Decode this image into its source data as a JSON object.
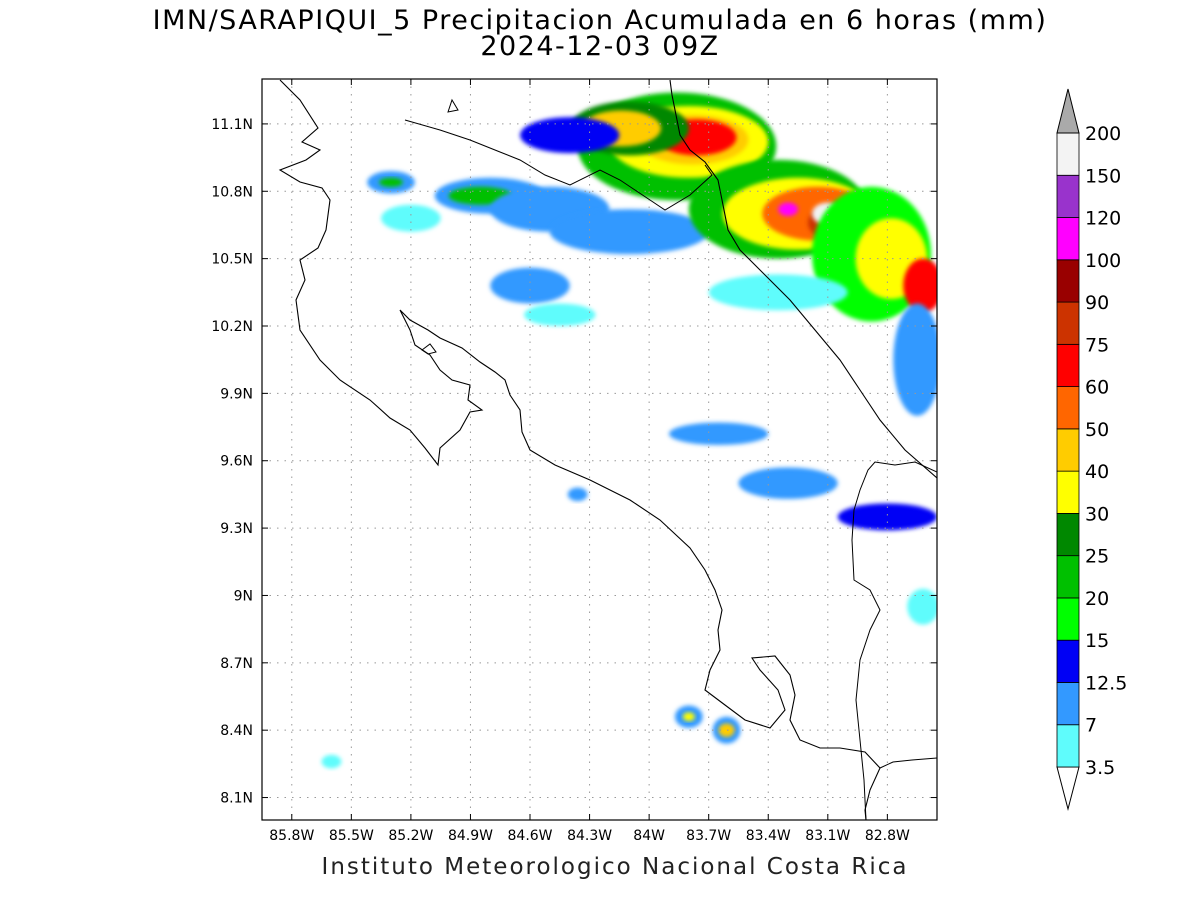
{
  "title": {
    "line1": "IMN/SARAPIQUI_5 Precipitacion Acumulada en 6 horas (mm)",
    "line2": "2024-12-03 09Z"
  },
  "footer": "Instituto Meteorologico Nacional Costa Rica",
  "map": {
    "lon_range": [
      -85.95,
      -82.55
    ],
    "lat_range": [
      8.0,
      11.3
    ],
    "x_ticks": [
      {
        "value": -85.8,
        "label": "85.8W"
      },
      {
        "value": -85.5,
        "label": "85.5W"
      },
      {
        "value": -85.2,
        "label": "85.2W"
      },
      {
        "value": -84.9,
        "label": "84.9W"
      },
      {
        "value": -84.6,
        "label": "84.6W"
      },
      {
        "value": -84.3,
        "label": "84.3W"
      },
      {
        "value": -84.0,
        "label": "84W"
      },
      {
        "value": -83.7,
        "label": "83.7W"
      },
      {
        "value": -83.4,
        "label": "83.4W"
      },
      {
        "value": -83.1,
        "label": "83.1W"
      },
      {
        "value": -82.8,
        "label": "82.8W"
      }
    ],
    "y_ticks": [
      {
        "value": 11.1,
        "label": "11.1N"
      },
      {
        "value": 10.8,
        "label": "10.8N"
      },
      {
        "value": 10.5,
        "label": "10.5N"
      },
      {
        "value": 10.2,
        "label": "10.2N"
      },
      {
        "value": 9.9,
        "label": "9.9N"
      },
      {
        "value": 9.6,
        "label": "9.6N"
      },
      {
        "value": 9.3,
        "label": "9.3N"
      },
      {
        "value": 9.0,
        "label": "9N"
      },
      {
        "value": 8.7,
        "label": "8.7N"
      },
      {
        "value": 8.4,
        "label": "8.4N"
      },
      {
        "value": 8.1,
        "label": "8.1N"
      }
    ],
    "grid": "dotted"
  },
  "colorbar": {
    "unit": "mm",
    "levels": [
      {
        "label": "3.5",
        "color": "#5ffcfc"
      },
      {
        "label": "7",
        "color": "#3399ff"
      },
      {
        "label": "12.5",
        "color": "#0000f5"
      },
      {
        "label": "15",
        "color": "#00ff00"
      },
      {
        "label": "20",
        "color": "#00c000"
      },
      {
        "label": "25",
        "color": "#008800"
      },
      {
        "label": "30",
        "color": "#ffff00"
      },
      {
        "label": "40",
        "color": "#ffcc00"
      },
      {
        "label": "50",
        "color": "#ff6600"
      },
      {
        "label": "60",
        "color": "#ff0000"
      },
      {
        "label": "75",
        "color": "#cc3300"
      },
      {
        "label": "90",
        "color": "#990000"
      },
      {
        "label": "100",
        "color": "#ff00ff"
      },
      {
        "label": "120",
        "color": "#9933cc"
      },
      {
        "label": "150",
        "color": "#f3f3f3"
      },
      {
        "label": "200",
        "color": "#aaaaaa"
      }
    ],
    "over_color": "#aaaaaa",
    "under_color": "#ffffff"
  },
  "precip_cells": [
    {
      "lon": -83.86,
      "lat": 11.0,
      "lon_r": 0.5,
      "lat_r": 0.24,
      "level": 4
    },
    {
      "lon": -83.8,
      "lat": 11.02,
      "lon_r": 0.4,
      "lat_r": 0.16,
      "level": 6
    },
    {
      "lon": -83.78,
      "lat": 11.03,
      "lon_r": 0.28,
      "lat_r": 0.11,
      "level": 7
    },
    {
      "lon": -83.76,
      "lat": 11.04,
      "lon_r": 0.2,
      "lat_r": 0.08,
      "level": 9
    },
    {
      "lon": -84.1,
      "lat": 11.08,
      "lon_r": 0.3,
      "lat_r": 0.12,
      "level": 5
    },
    {
      "lon": -84.14,
      "lat": 11.08,
      "lon_r": 0.2,
      "lat_r": 0.08,
      "level": 7
    },
    {
      "lon": -84.4,
      "lat": 11.05,
      "lon_r": 0.25,
      "lat_r": 0.08,
      "level": 2
    },
    {
      "lon": -84.8,
      "lat": 10.78,
      "lon_r": 0.28,
      "lat_r": 0.08,
      "level": 1
    },
    {
      "lon": -84.85,
      "lat": 10.78,
      "lon_r": 0.16,
      "lat_r": 0.04,
      "level": 4
    },
    {
      "lon": -85.3,
      "lat": 10.84,
      "lon_r": 0.12,
      "lat_r": 0.05,
      "level": 1
    },
    {
      "lon": -85.3,
      "lat": 10.84,
      "lon_r": 0.06,
      "lat_r": 0.02,
      "level": 4
    },
    {
      "lon": -85.2,
      "lat": 10.68,
      "lon_r": 0.15,
      "lat_r": 0.06,
      "level": 0
    },
    {
      "lon": -84.5,
      "lat": 10.72,
      "lon_r": 0.3,
      "lat_r": 0.1,
      "level": 1
    },
    {
      "lon": -84.1,
      "lat": 10.62,
      "lon_r": 0.4,
      "lat_r": 0.1,
      "level": 1
    },
    {
      "lon": -83.35,
      "lat": 10.72,
      "lon_r": 0.45,
      "lat_r": 0.22,
      "level": 4
    },
    {
      "lon": -83.25,
      "lat": 10.7,
      "lon_r": 0.38,
      "lat_r": 0.16,
      "level": 6
    },
    {
      "lon": -83.15,
      "lat": 10.7,
      "lon_r": 0.28,
      "lat_r": 0.12,
      "level": 8
    },
    {
      "lon": -83.02,
      "lat": 10.66,
      "lon_r": 0.18,
      "lat_r": 0.09,
      "level": 10
    },
    {
      "lon": -83.1,
      "lat": 10.7,
      "lon_r": 0.08,
      "lat_r": 0.05,
      "level": 14
    },
    {
      "lon": -83.3,
      "lat": 10.72,
      "lon_r": 0.05,
      "lat_r": 0.03,
      "level": 12
    },
    {
      "lon": -82.88,
      "lat": 10.52,
      "lon_r": 0.3,
      "lat_r": 0.3,
      "level": 3
    },
    {
      "lon": -82.78,
      "lat": 10.5,
      "lon_r": 0.18,
      "lat_r": 0.18,
      "level": 6
    },
    {
      "lon": -82.62,
      "lat": 10.38,
      "lon_r": 0.1,
      "lat_r": 0.12,
      "level": 9
    },
    {
      "lon": -82.65,
      "lat": 10.05,
      "lon_r": 0.12,
      "lat_r": 0.25,
      "level": 1
    },
    {
      "lon": -83.35,
      "lat": 10.35,
      "lon_r": 0.35,
      "lat_r": 0.08,
      "level": 0
    },
    {
      "lon": -84.6,
      "lat": 10.38,
      "lon_r": 0.2,
      "lat_r": 0.08,
      "level": 1
    },
    {
      "lon": -84.45,
      "lat": 10.25,
      "lon_r": 0.18,
      "lat_r": 0.05,
      "level": 0
    },
    {
      "lon": -83.65,
      "lat": 9.72,
      "lon_r": 0.25,
      "lat_r": 0.05,
      "level": 1
    },
    {
      "lon": -83.3,
      "lat": 9.5,
      "lon_r": 0.25,
      "lat_r": 0.07,
      "level": 1
    },
    {
      "lon": -82.8,
      "lat": 9.35,
      "lon_r": 0.25,
      "lat_r": 0.06,
      "level": 2
    },
    {
      "lon": -82.62,
      "lat": 8.95,
      "lon_r": 0.08,
      "lat_r": 0.08,
      "level": 0
    },
    {
      "lon": -84.36,
      "lat": 9.45,
      "lon_r": 0.05,
      "lat_r": 0.03,
      "level": 1
    },
    {
      "lon": -83.8,
      "lat": 8.46,
      "lon_r": 0.07,
      "lat_r": 0.05,
      "level": 1
    },
    {
      "lon": -83.8,
      "lat": 8.46,
      "lon_r": 0.03,
      "lat_r": 0.02,
      "level": 6
    },
    {
      "lon": -83.61,
      "lat": 8.4,
      "lon_r": 0.07,
      "lat_r": 0.06,
      "level": 1
    },
    {
      "lon": -83.61,
      "lat": 8.4,
      "lon_r": 0.04,
      "lat_r": 0.03,
      "level": 7
    },
    {
      "lon": -85.6,
      "lat": 8.26,
      "lon_r": 0.05,
      "lat_r": 0.03,
      "level": 0
    }
  ]
}
